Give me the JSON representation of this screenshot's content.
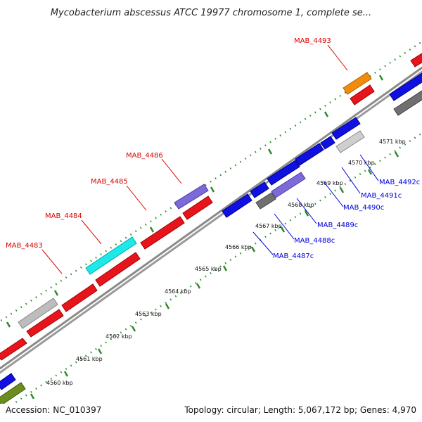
{
  "title": "Mycobacterium abscessus ATCC 19977 chromosome 1, complete se...",
  "footer": {
    "accession": "Accession: NC_010397",
    "summary": "Topology: circular; Length: 5,067,172 bp; Genes: 4,970"
  },
  "colors": {
    "backbone": "#808080",
    "tick": "#208020",
    "forward_label": "#dd0000",
    "reverse_label": "#0000dd"
  },
  "scale_ticks": [
    {
      "label": "4560 kbp"
    },
    {
      "label": "4561 kbp"
    },
    {
      "label": "4562 kbp"
    },
    {
      "label": "4563 kbp"
    },
    {
      "label": "4564 kbp"
    },
    {
      "label": "4565 kbp"
    },
    {
      "label": "4566 kbp"
    },
    {
      "label": "4567 kbp"
    },
    {
      "label": "4568 kbp"
    },
    {
      "label": "4569 kbp"
    },
    {
      "label": "4570 kbp"
    },
    {
      "label": "4571 kbp"
    }
  ],
  "forward_genes": [
    {
      "label": "MAB_4483"
    },
    {
      "label": "MAB_4484"
    },
    {
      "label": "MAB_4485"
    },
    {
      "label": "MAB_4486"
    },
    {
      "label": "MAB_4493"
    }
  ],
  "reverse_genes": [
    {
      "label": "MAB_4487c"
    },
    {
      "label": "MAB_4488c"
    },
    {
      "label": "MAB_4489c"
    },
    {
      "label": "MAB_4490c"
    },
    {
      "label": "MAB_4491c"
    },
    {
      "label": "MAB_4492c"
    }
  ]
}
